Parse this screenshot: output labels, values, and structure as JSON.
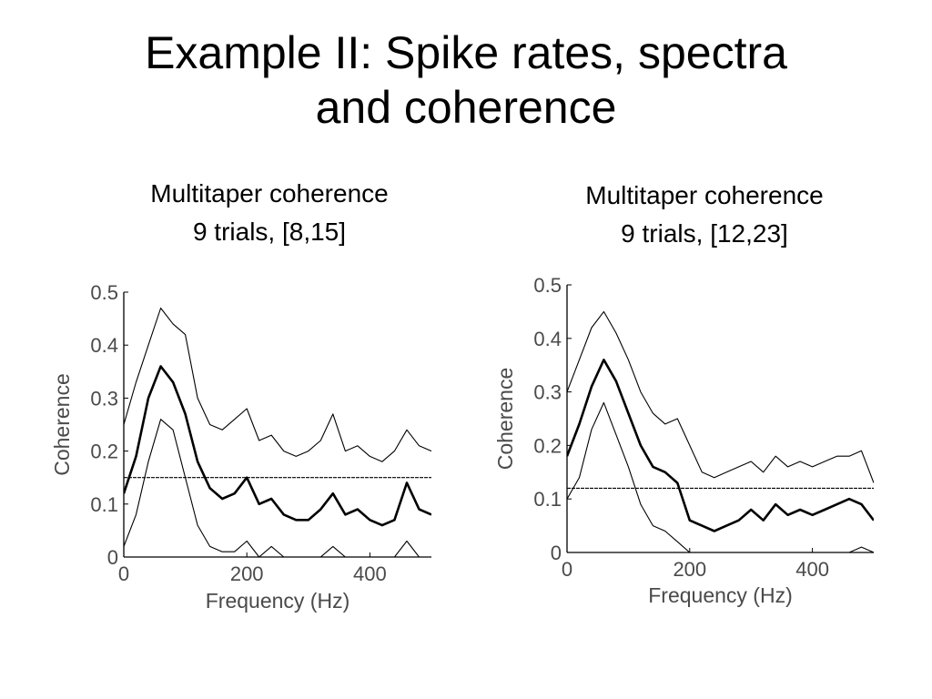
{
  "slide": {
    "title_line1": "Example II:  Spike rates, spectra",
    "title_line2": "and coherence"
  },
  "chart_data": [
    {
      "type": "line",
      "title_line1": "Multitaper coherence",
      "title_line2": "9 trials, [8,15]",
      "xlabel": "Frequency (Hz)",
      "ylabel": "Coherence",
      "xlim": [
        0,
        500
      ],
      "ylim": [
        0,
        0.5
      ],
      "xticks": [
        0,
        200,
        400
      ],
      "xticklabels": [
        "0",
        "200",
        "400"
      ],
      "yticks": [
        0,
        0.1,
        0.2,
        0.3,
        0.4,
        0.5
      ],
      "yticklabels": [
        "0",
        "0.1",
        "0.2",
        "0.3",
        "0.4",
        "0.5"
      ],
      "grid": false,
      "x": [
        0,
        20,
        40,
        60,
        80,
        100,
        120,
        140,
        160,
        180,
        200,
        220,
        240,
        260,
        280,
        300,
        320,
        340,
        360,
        380,
        400,
        420,
        440,
        460,
        480,
        500
      ],
      "series": [
        {
          "role": "upper",
          "values": [
            0.25,
            0.33,
            0.4,
            0.47,
            0.44,
            0.42,
            0.3,
            0.25,
            0.24,
            0.26,
            0.28,
            0.22,
            0.23,
            0.2,
            0.19,
            0.2,
            0.22,
            0.27,
            0.2,
            0.21,
            0.19,
            0.18,
            0.2,
            0.24,
            0.21,
            0.2
          ]
        },
        {
          "role": "estimate",
          "values": [
            0.12,
            0.19,
            0.3,
            0.36,
            0.33,
            0.27,
            0.18,
            0.13,
            0.11,
            0.12,
            0.15,
            0.1,
            0.11,
            0.08,
            0.07,
            0.07,
            0.09,
            0.12,
            0.08,
            0.09,
            0.07,
            0.06,
            0.07,
            0.14,
            0.09,
            0.08
          ]
        },
        {
          "role": "lower",
          "values": [
            0.02,
            0.08,
            0.18,
            0.26,
            0.24,
            0.15,
            0.06,
            0.02,
            0.01,
            0.01,
            0.03,
            0.0,
            0.02,
            0.0,
            0.0,
            0.0,
            0.0,
            0.02,
            0.0,
            0.0,
            0.0,
            0.0,
            0.0,
            0.03,
            0.0,
            0.0
          ]
        }
      ],
      "threshold": 0.15
    },
    {
      "type": "line",
      "title_line1": "Multitaper coherence",
      "title_line2": "9 trials, [12,23]",
      "xlabel": "Frequency (Hz)",
      "ylabel": "Coherence",
      "xlim": [
        0,
        500
      ],
      "ylim": [
        0,
        0.5
      ],
      "xticks": [
        0,
        200,
        400
      ],
      "xticklabels": [
        "0",
        "200",
        "400"
      ],
      "yticks": [
        0,
        0.1,
        0.2,
        0.3,
        0.4,
        0.5
      ],
      "yticklabels": [
        "0",
        "0.1",
        "0.2",
        "0.3",
        "0.4",
        "0.5"
      ],
      "grid": false,
      "x": [
        0,
        20,
        40,
        60,
        80,
        100,
        120,
        140,
        160,
        180,
        200,
        220,
        240,
        260,
        280,
        300,
        320,
        340,
        360,
        380,
        400,
        420,
        440,
        460,
        480,
        500
      ],
      "series": [
        {
          "role": "upper",
          "values": [
            0.3,
            0.36,
            0.42,
            0.45,
            0.41,
            0.36,
            0.3,
            0.26,
            0.24,
            0.25,
            0.2,
            0.15,
            0.14,
            0.15,
            0.16,
            0.17,
            0.15,
            0.18,
            0.16,
            0.17,
            0.16,
            0.17,
            0.18,
            0.18,
            0.19,
            0.13
          ]
        },
        {
          "role": "estimate",
          "values": [
            0.18,
            0.24,
            0.31,
            0.36,
            0.32,
            0.26,
            0.2,
            0.16,
            0.15,
            0.13,
            0.06,
            0.05,
            0.04,
            0.05,
            0.06,
            0.08,
            0.06,
            0.09,
            0.07,
            0.08,
            0.07,
            0.08,
            0.09,
            0.1,
            0.09,
            0.06
          ]
        },
        {
          "role": "lower",
          "values": [
            0.1,
            0.14,
            0.23,
            0.28,
            0.22,
            0.16,
            0.09,
            0.05,
            0.04,
            0.02,
            0.0,
            0.0,
            0.0,
            0.0,
            0.0,
            0.0,
            0.0,
            0.0,
            0.0,
            0.0,
            0.0,
            0.0,
            0.0,
            0.0,
            0.01,
            0.0
          ]
        }
      ],
      "threshold": 0.12
    }
  ]
}
